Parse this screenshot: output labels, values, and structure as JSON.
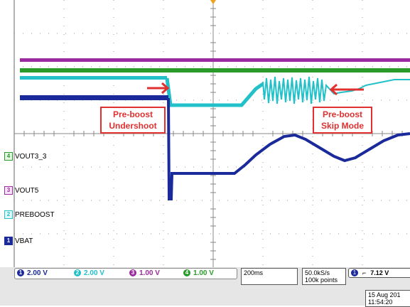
{
  "annotations": {
    "undershoot_line1": "Pre-boost",
    "undershoot_line2": "Undershoot",
    "skip_line1": "Pre-boost",
    "skip_line2": "Skip Mode"
  },
  "channels": [
    {
      "id": "4",
      "name": "VOUT3_3",
      "color": "#2a9a2a"
    },
    {
      "id": "3",
      "name": "VOUT5",
      "color": "#9a2aa0"
    },
    {
      "id": "2",
      "name": "PREBOOST",
      "color": "#22c0c8"
    },
    {
      "id": "1",
      "name": "VBAT",
      "color": "#1a2a9a"
    }
  ],
  "scales": [
    {
      "id": "1",
      "value": "2.00 V",
      "color": "#1a2a9a"
    },
    {
      "id": "2",
      "value": "2.00 V",
      "color": "#22c0c8"
    },
    {
      "id": "3",
      "value": "1.00 V",
      "color": "#9a2aa0"
    },
    {
      "id": "4",
      "value": "1.00 V",
      "color": "#2a9a2a"
    }
  ],
  "timebase": "200ms",
  "sample_rate": "50.0kS/s",
  "record_length": "100k points",
  "trigger": {
    "id": "1",
    "symbol": "⌐",
    "level": "7.12 V"
  },
  "date": "15 Aug 201",
  "time": "11:54:20"
}
